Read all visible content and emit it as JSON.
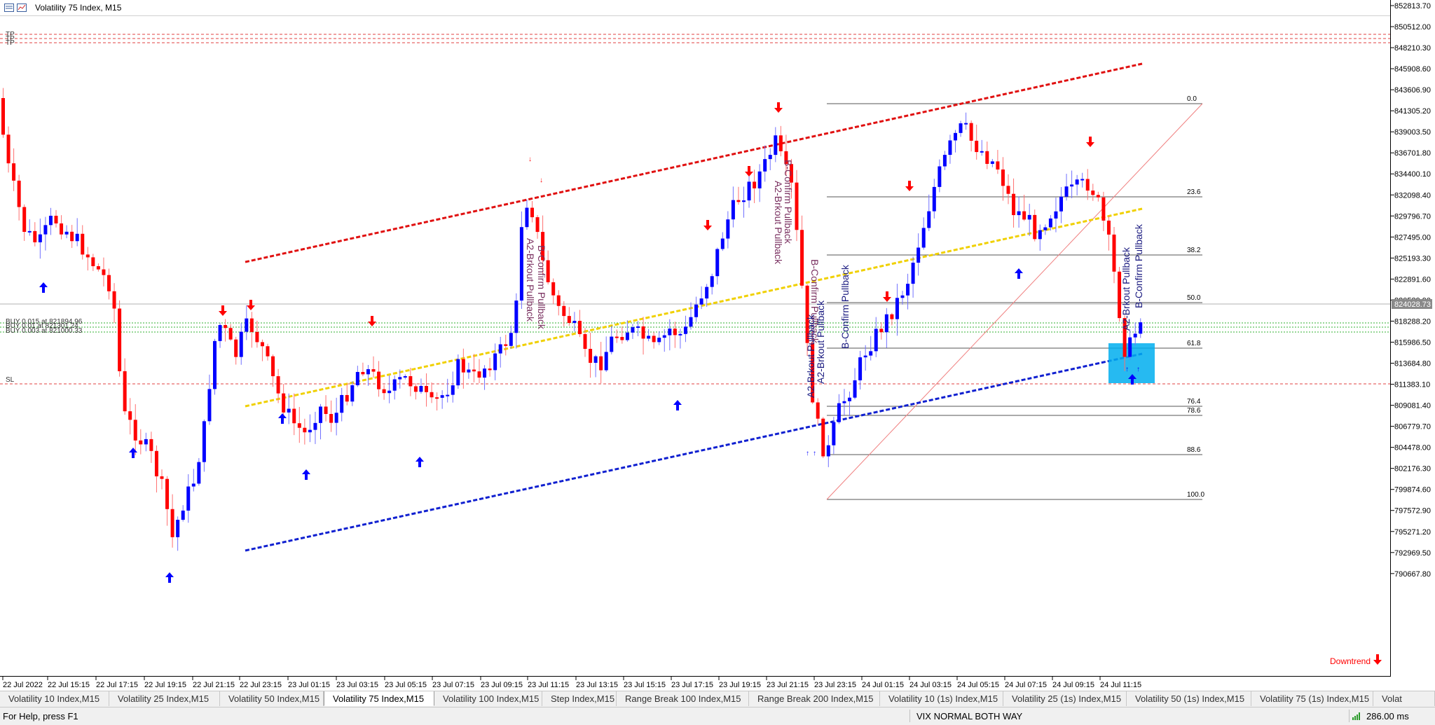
{
  "window": {
    "title": "Volatility 75 Index, M15"
  },
  "price_axis": {
    "labels": [
      "852813.70",
      "850512.00",
      "848210.30",
      "845908.60",
      "843606.90",
      "841305.20",
      "839003.50",
      "836701.80",
      "834400.10",
      "832098.40",
      "829796.70",
      "827495.00",
      "825193.30",
      "822891.60",
      "820589.90",
      "818288.20",
      "815986.50",
      "813684.80",
      "811383.10",
      "809081.40",
      "806779.70",
      "804478.00",
      "802176.30",
      "799874.60",
      "797572.90",
      "795271.20",
      "792969.50",
      "790667.80"
    ],
    "current_price": "824028.73"
  },
  "time_axis": {
    "labels": [
      "22 Jul 2022",
      "22 Jul 15:15",
      "22 Jul 17:15",
      "22 Jul 19:15",
      "22 Jul 21:15",
      "22 Jul 23:15",
      "23 Jul 01:15",
      "23 Jul 03:15",
      "23 Jul 05:15",
      "23 Jul 07:15",
      "23 Jul 09:15",
      "23 Jul 11:15",
      "23 Jul 13:15",
      "23 Jul 15:15",
      "23 Jul 17:15",
      "23 Jul 19:15",
      "23 Jul 21:15",
      "23 Jul 23:15",
      "24 Jul 01:15",
      "24 Jul 03:15",
      "24 Jul 05:15",
      "24 Jul 07:15",
      "24 Jul 09:15",
      "24 Jul 11:15"
    ]
  },
  "levels": {
    "tp_labels": [
      "TP",
      "TP",
      "TP"
    ],
    "buy_labels": [
      "BUY 0.015 at 821894.96",
      "BUY 0.01 at 821301.24",
      "BUY 0.003 at 821000.33"
    ],
    "sl_label": "SL"
  },
  "fibonacci": {
    "levels": [
      "0.0",
      "23.6",
      "38.2",
      "50.0",
      "61.8",
      "76.4",
      "78.6",
      "88.6",
      "100.0"
    ]
  },
  "annotations": {
    "b_confirm": "B-Confirm Pullback",
    "a2_brkout": "A2-Brkout Pullback",
    "trend": "Downtrend"
  },
  "tabs": [
    {
      "label": "Volatility 10 Index,M15",
      "active": false
    },
    {
      "label": "Volatility 25 Index,M15",
      "active": false
    },
    {
      "label": "Volatility 50 Index,M15",
      "active": false
    },
    {
      "label": "Volatility 75 Index,M15",
      "active": true
    },
    {
      "label": "Volatility 100 Index,M15",
      "active": false
    },
    {
      "label": "Step Index,M15",
      "active": false
    },
    {
      "label": "Range Break 100 Index,M15",
      "active": false
    },
    {
      "label": "Range Break 200 Index,M15",
      "active": false
    },
    {
      "label": "Volatility 10 (1s) Index,M15",
      "active": false
    },
    {
      "label": "Volatility 25 (1s) Index,M15",
      "active": false
    },
    {
      "label": "Volatility 50 (1s) Index,M15",
      "active": false
    },
    {
      "label": "Volatility 75 (1s) Index,M15",
      "active": false
    },
    {
      "label": "Volat",
      "active": false
    }
  ],
  "status": {
    "help": "For Help, press F1",
    "profile": "VIX NORMAL BOTH WAY",
    "connection": "286.00 ms"
  },
  "colors": {
    "bull": "#0000ff",
    "bear": "#ff0000",
    "upper_channel": "#e01010",
    "middle_line": "#f0d000",
    "lower_channel": "#1020d0",
    "zone": "#00aeef"
  },
  "chart_data": {
    "type": "candlestick",
    "symbol": "Volatility 75 Index",
    "timeframe": "M15",
    "price_range": [
      790667.8,
      852813.7
    ],
    "last_price": 824028.73
  }
}
